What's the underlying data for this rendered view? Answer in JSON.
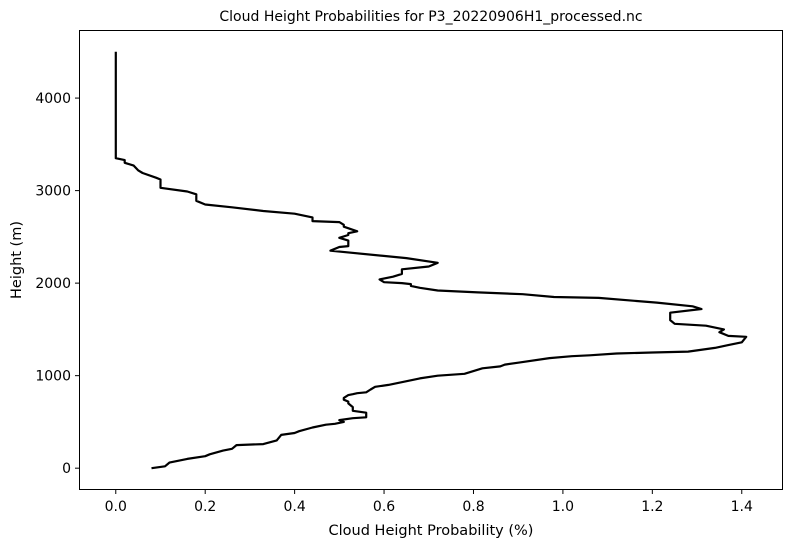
{
  "chart_data": {
    "type": "line",
    "title": "Cloud Height Probabilities for P3_20220906H1_processed.nc",
    "xlabel": "Cloud Height Probability (%)",
    "ylabel": "Height (m)",
    "xlim": [
      -0.08,
      1.49
    ],
    "ylim": [
      -225,
      4725
    ],
    "xticks": [
      "0.0",
      "0.2",
      "0.4",
      "0.6",
      "0.8",
      "1.0",
      "1.2",
      "1.4"
    ],
    "yticks": [
      "0",
      "1000",
      "2000",
      "3000",
      "4000"
    ],
    "grid": false,
    "legend": "none",
    "line_color": "#000000",
    "series": [
      {
        "x": [
          0.08,
          0.11,
          0.12,
          0.16,
          0.2,
          0.21,
          0.24,
          0.26,
          0.27,
          0.33,
          0.36,
          0.37,
          0.4,
          0.41,
          0.44,
          0.47,
          0.49,
          0.51,
          0.5,
          0.53,
          0.56,
          0.56,
          0.53,
          0.53,
          0.52,
          0.52,
          0.51,
          0.51,
          0.52,
          0.53,
          0.54,
          0.56,
          0.57,
          0.58,
          0.61,
          0.63,
          0.68,
          0.72,
          0.78,
          0.82,
          0.86,
          0.87,
          0.9,
          0.97,
          1.02,
          1.06,
          1.12,
          1.2,
          1.28,
          1.34,
          1.37,
          1.4,
          1.41,
          1.37,
          1.35,
          1.36,
          1.32,
          1.25,
          1.24,
          1.24,
          1.31,
          1.29,
          1.21,
          1.08,
          0.98,
          0.91,
          0.81,
          0.72,
          0.68,
          0.66,
          0.66,
          0.64,
          0.6,
          0.59,
          0.62,
          0.64,
          0.64,
          0.7,
          0.72,
          0.65,
          0.48,
          0.5,
          0.52,
          0.52,
          0.5,
          0.52,
          0.52,
          0.54,
          0.51,
          0.51,
          0.5,
          0.44,
          0.44,
          0.4,
          0.33,
          0.26,
          0.2,
          0.18,
          0.18,
          0.16,
          0.1,
          0.1,
          0.09,
          0.06,
          0.05,
          0.04,
          0.02,
          0.02,
          0.0,
          0.0,
          0.0,
          0.0,
          0.0
        ],
        "y": [
          0,
          20,
          60,
          100,
          130,
          150,
          190,
          210,
          250,
          260,
          300,
          360,
          380,
          400,
          440,
          470,
          480,
          500,
          520,
          540,
          550,
          600,
          620,
          660,
          700,
          720,
          740,
          760,
          790,
          800,
          810,
          820,
          850,
          880,
          900,
          920,
          970,
          1000,
          1020,
          1080,
          1100,
          1120,
          1140,
          1190,
          1210,
          1220,
          1240,
          1250,
          1260,
          1300,
          1330,
          1360,
          1420,
          1430,
          1470,
          1500,
          1540,
          1560,
          1600,
          1680,
          1720,
          1750,
          1790,
          1840,
          1850,
          1880,
          1900,
          1920,
          1950,
          1970,
          1990,
          2000,
          2010,
          2040,
          2070,
          2100,
          2150,
          2180,
          2220,
          2270,
          2350,
          2390,
          2400,
          2460,
          2490,
          2520,
          2540,
          2560,
          2610,
          2630,
          2660,
          2670,
          2710,
          2750,
          2780,
          2820,
          2850,
          2890,
          2960,
          2990,
          3030,
          3120,
          3140,
          3190,
          3220,
          3270,
          3300,
          3330,
          3350,
          3600,
          4000,
          4300,
          4500
        ]
      }
    ]
  }
}
